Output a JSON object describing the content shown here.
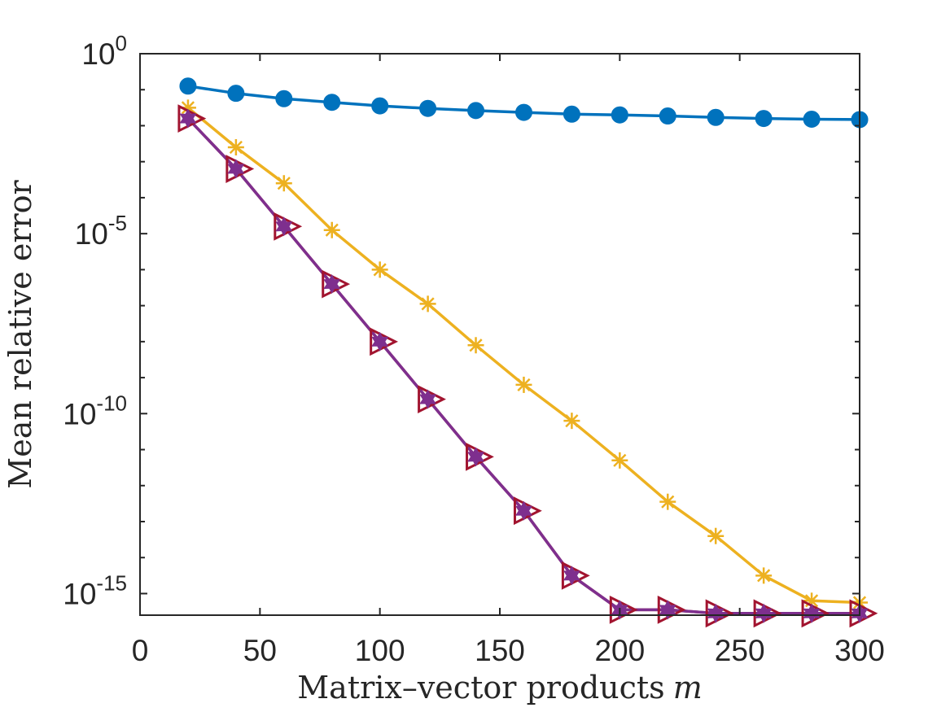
{
  "chart_data": {
    "type": "line",
    "title": "",
    "xlabel": "Matrix–vector products",
    "xlabel_var": "m",
    "ylabel": "Mean relative error",
    "yscale": "log",
    "xlim": [
      0,
      300
    ],
    "ylim_log10": [
      -15.6,
      0
    ],
    "grid": false,
    "legend": "none",
    "x_ticks": [
      {
        "value": 0,
        "label": "0"
      },
      {
        "value": 50,
        "label": "50"
      },
      {
        "value": 100,
        "label": "100"
      },
      {
        "value": 150,
        "label": "150"
      },
      {
        "value": 200,
        "label": "200"
      },
      {
        "value": 250,
        "label": "250"
      },
      {
        "value": 300,
        "label": "300"
      }
    ],
    "y_ticks": [
      {
        "exp": 0,
        "base": "10",
        "sup": "0"
      },
      {
        "exp": -5,
        "base": "10",
        "sup": "-5"
      },
      {
        "exp": -10,
        "base": "10",
        "sup": "-10"
      },
      {
        "exp": -15,
        "base": "10",
        "sup": "-15"
      }
    ],
    "x": [
      20,
      40,
      60,
      80,
      100,
      120,
      140,
      160,
      180,
      200,
      220,
      240,
      260,
      280,
      300
    ],
    "series": [
      {
        "name": "blue-circles",
        "color": "#0072BD",
        "marker": "circle",
        "log10_values": [
          -0.9,
          -1.1,
          -1.25,
          -1.35,
          -1.45,
          -1.52,
          -1.58,
          -1.63,
          -1.68,
          -1.7,
          -1.73,
          -1.77,
          -1.8,
          -1.82,
          -1.83
        ]
      },
      {
        "name": "yellow-asterisks",
        "color": "#EDB120",
        "marker": "asterisk",
        "log10_values": [
          -1.5,
          -2.6,
          -3.6,
          -4.9,
          -6.0,
          -6.95,
          -8.1,
          -9.2,
          -10.2,
          -11.3,
          -12.45,
          -13.4,
          -14.5,
          -15.2,
          -15.25
        ]
      },
      {
        "name": "red-triangles",
        "color": "#A2142F",
        "marker": "triangle-right",
        "log10_values": [
          -1.8,
          -3.2,
          -4.8,
          -6.4,
          -8.0,
          -9.6,
          -11.2,
          -12.7,
          -14.5,
          -15.45,
          -15.45,
          -15.55,
          -15.55,
          -15.55,
          -15.55
        ]
      },
      {
        "name": "purple-stars",
        "color": "#7E2F8E",
        "marker": "hexagram",
        "log10_values": [
          -1.8,
          -3.2,
          -4.8,
          -6.4,
          -8.0,
          -9.6,
          -11.2,
          -12.7,
          -14.5,
          -15.45,
          -15.45,
          -15.55,
          -15.55,
          -15.55,
          -15.55
        ]
      }
    ]
  }
}
